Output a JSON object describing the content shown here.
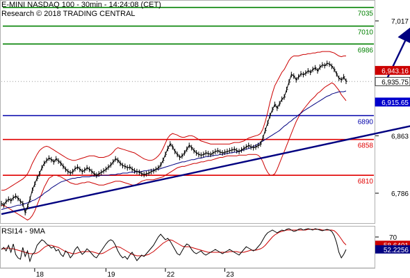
{
  "header": {
    "title": "E-MINI NASDAQ 100 - 30min - 14:24:08 (CET)",
    "subtitle": "Research © 2018 TRADING CENTRAL"
  },
  "colors": {
    "price": "#000000",
    "bollinger": "#cc0000",
    "ma_blue": "#000080",
    "support": "#0000aa",
    "resistance": "#e00000",
    "target": "#008000",
    "trend": "#000080",
    "forecast_arrow": "#000080",
    "tag_current": "#ffffff",
    "tag_upper": "#cc0000",
    "tag_lower": "#0000cc",
    "rsi_line": "#000000",
    "rsi_ma": "#cc0000",
    "rsi_tag_upper": "#cc0000",
    "rsi_tag_lower": "#000080"
  },
  "chart_data": [
    {
      "type": "line",
      "panel": "price",
      "ylim": [
        6745,
        7045
      ],
      "yticks": [
        "7,017",
        "6,863",
        "6,786"
      ],
      "ytick_values": [
        7017,
        6863,
        6786
      ],
      "xticks": [
        "18",
        "19",
        "22",
        "23"
      ],
      "levels": [
        {
          "label": "7035",
          "value": 7035,
          "kind": "target"
        },
        {
          "label": "7010",
          "value": 7010,
          "kind": "target"
        },
        {
          "label": "6986",
          "value": 6986,
          "kind": "target"
        },
        {
          "label": "6890",
          "value": 6890,
          "kind": "support"
        },
        {
          "label": "6858",
          "value": 6858,
          "kind": "resistance"
        },
        {
          "label": "6810",
          "value": 6810,
          "kind": "resistance"
        }
      ],
      "price_tags": [
        {
          "label": "6,943.16",
          "value": 6943.16,
          "kind": "upper"
        },
        {
          "label": "6,935.75",
          "value": 6935.75,
          "kind": "current"
        },
        {
          "label": "6,915.65",
          "value": 6915.65,
          "kind": "lower"
        }
      ],
      "trendline": {
        "from": [
          0,
          6758
        ],
        "to": [
          172,
          6876
        ]
      },
      "forecast_arrow": {
        "from": [
          162,
          6938
        ],
        "to": [
          172,
          7010
        ]
      },
      "series": [
        {
          "kind": "price",
          "values": [
            6772,
            6770,
            6775,
            6778,
            6776,
            6780,
            6782,
            6779,
            6775,
            6772,
            6760,
            6768,
            6778,
            6790,
            6798,
            6806,
            6812,
            6820,
            6826,
            6830,
            6833,
            6831,
            6828,
            6832,
            6829,
            6826,
            6822,
            6818,
            6815,
            6813,
            6815,
            6819,
            6821,
            6818,
            6815,
            6817,
            6820,
            6818,
            6815,
            6812,
            6810,
            6812,
            6814,
            6816,
            6818,
            6821,
            6824,
            6828,
            6832,
            6830,
            6826,
            6823,
            6822,
            6820,
            6821,
            6818,
            6816,
            6815,
            6814,
            6812,
            6811,
            6812,
            6813,
            6815,
            6816,
            6818,
            6820,
            6824,
            6830,
            6838,
            6846,
            6852,
            6848,
            6842,
            6838,
            6834,
            6836,
            6840,
            6845,
            6850,
            6847,
            6843,
            6840,
            6838,
            6837,
            6838,
            6840,
            6839,
            6838,
            6840,
            6842,
            6843,
            6841,
            6840,
            6841,
            6842,
            6843,
            6844,
            6845,
            6843,
            6842,
            6844,
            6846,
            6848,
            6850,
            6848,
            6847,
            6848,
            6850,
            6852,
            6860,
            6870,
            6880,
            6890,
            6898,
            6905,
            6900,
            6906,
            6912,
            6915,
            6925,
            6935,
            6945,
            6943,
            6938,
            6942,
            6946,
            6945,
            6947,
            6950,
            6948,
            6952,
            6954,
            6950,
            6955,
            6958,
            6957,
            6960,
            6959,
            6956,
            6952,
            6946,
            6940,
            6938,
            6942,
            6936
          ]
        },
        {
          "kind": "bollinger_upper",
          "values": [
            6790,
            6790,
            6791,
            6793,
            6795,
            6797,
            6799,
            6801,
            6803,
            6805,
            6808,
            6812,
            6818,
            6826,
            6832,
            6838,
            6843,
            6846,
            6848,
            6849,
            6848,
            6846,
            6844,
            6842,
            6840,
            6838,
            6836,
            6834,
            6832,
            6831,
            6830,
            6830,
            6831,
            6832,
            6833,
            6834,
            6835,
            6836,
            6836,
            6836,
            6835,
            6834,
            6834,
            6834,
            6835,
            6836,
            6838,
            6841,
            6845,
            6847,
            6846,
            6845,
            6844,
            6843,
            6842,
            6841,
            6840,
            6838,
            6836,
            6834,
            6832,
            6831,
            6830,
            6830,
            6831,
            6833,
            6836,
            6840,
            6846,
            6853,
            6860,
            6864,
            6866,
            6865,
            6864,
            6862,
            6861,
            6861,
            6862,
            6863,
            6863,
            6862,
            6860,
            6858,
            6856,
            6855,
            6854,
            6853,
            6852,
            6852,
            6852,
            6852,
            6852,
            6852,
            6852,
            6852,
            6852,
            6853,
            6854,
            6854,
            6854,
            6855,
            6856,
            6858,
            6860,
            6861,
            6862,
            6863,
            6864,
            6866,
            6872,
            6882,
            6894,
            6908,
            6920,
            6930,
            6936,
            6942,
            6948,
            6952,
            6958,
            6964,
            6968,
            6970,
            6970,
            6970,
            6971,
            6972,
            6972,
            6973,
            6973,
            6974,
            6974,
            6975,
            6975,
            6976,
            6976,
            6976,
            6976,
            6975,
            6974,
            6972,
            6970,
            6969,
            6970,
            6970
          ]
        },
        {
          "kind": "bollinger_lower",
          "values": [
            6770,
            6769,
            6768,
            6766,
            6764,
            6762,
            6760,
            6758,
            6756,
            6754,
            6752,
            6750,
            6752,
            6756,
            6762,
            6770,
            6778,
            6786,
            6794,
            6800,
            6806,
            6808,
            6810,
            6810,
            6809,
            6808,
            6806,
            6804,
            6802,
            6800,
            6799,
            6798,
            6798,
            6799,
            6800,
            6800,
            6801,
            6801,
            6800,
            6799,
            6798,
            6797,
            6797,
            6797,
            6798,
            6799,
            6800,
            6801,
            6802,
            6802,
            6802,
            6801,
            6800,
            6799,
            6798,
            6797,
            6797,
            6798,
            6800,
            6802,
            6803,
            6804,
            6804,
            6804,
            6804,
            6805,
            6806,
            6807,
            6808,
            6810,
            6812,
            6814,
            6816,
            6818,
            6820,
            6821,
            6822,
            6822,
            6823,
            6824,
            6825,
            6826,
            6826,
            6827,
            6828,
            6828,
            6829,
            6830,
            6830,
            6831,
            6832,
            6833,
            6834,
            6834,
            6835,
            6836,
            6836,
            6836,
            6836,
            6836,
            6837,
            6837,
            6837,
            6837,
            6838,
            6838,
            6838,
            6838,
            6837,
            6834,
            6828,
            6820,
            6814,
            6810,
            6810,
            6812,
            6818,
            6826,
            6834,
            6842,
            6850,
            6858,
            6866,
            6874,
            6882,
            6888,
            6894,
            6898,
            6902,
            6906,
            6910,
            6913,
            6916,
            6920,
            6922,
            6925,
            6928,
            6930,
            6932,
            6934,
            6932,
            6928,
            6924,
            6918,
            6914,
            6910
          ]
        },
        {
          "kind": "moving_average",
          "values": [
            6764,
            6765,
            6766,
            6767,
            6767,
            6768,
            6769,
            6770,
            6770,
            6771,
            6772,
            6773,
            6774,
            6776,
            6777,
            6779,
            6781,
            6783,
            6786,
            6788,
            6790,
            6793,
            6795,
            6797,
            6799,
            6801,
            6802,
            6803,
            6804,
            6805,
            6806,
            6806,
            6807,
            6807,
            6808,
            6808,
            6808,
            6808,
            6809,
            6809,
            6809,
            6809,
            6810,
            6810,
            6810,
            6810,
            6811,
            6811,
            6811,
            6812,
            6812,
            6813,
            6813,
            6813,
            6814,
            6814,
            6814,
            6815,
            6815,
            6815,
            6816,
            6816,
            6817,
            6817,
            6817,
            6818,
            6818,
            6819,
            6820,
            6821,
            6822,
            6823,
            6824,
            6825,
            6826,
            6827,
            6828,
            6828,
            6829,
            6830,
            6831,
            6831,
            6832,
            6833,
            6833,
            6834,
            6835,
            6835,
            6836,
            6836,
            6837,
            6837,
            6838,
            6838,
            6839,
            6839,
            6840,
            6840,
            6841,
            6841,
            6842,
            6843,
            6844,
            6845,
            6846,
            6847,
            6849,
            6850,
            6852,
            6854,
            6856,
            6858,
            6860,
            6862,
            6864,
            6866,
            6868,
            6870,
            6873,
            6876,
            6878,
            6881,
            6883,
            6886,
            6888,
            6891,
            6893,
            6896,
            6898,
            6900,
            6902,
            6904,
            6906,
            6908,
            6910,
            6912,
            6914,
            6916,
            6917,
            6919,
            6920,
            6921,
            6922,
            6922,
            6922,
            6923
          ]
        }
      ]
    },
    {
      "type": "line",
      "panel": "rsi",
      "title": "RSI14 - 9MA",
      "ylim": [
        25,
        85
      ],
      "yticks": [
        "70"
      ],
      "ytick_values": [
        70
      ],
      "value_tags": [
        {
          "label": "58.6401",
          "value": 58.64,
          "kind": "upper"
        },
        {
          "label": "52.2256",
          "value": 52.23,
          "kind": "lower"
        }
      ],
      "series": [
        {
          "kind": "rsi",
          "values": [
            52,
            55,
            50,
            58,
            48,
            60,
            45,
            40,
            38,
            55,
            42,
            50,
            35,
            45,
            48,
            58,
            62,
            66,
            64,
            60,
            58,
            54,
            56,
            50,
            52,
            45,
            42,
            50,
            47,
            40,
            44,
            52,
            56,
            50,
            45,
            48,
            53,
            50,
            46,
            42,
            40,
            45,
            50,
            55,
            60,
            64,
            66,
            64,
            58,
            50,
            44,
            40,
            42,
            38,
            44,
            48,
            42,
            36,
            40,
            44,
            42,
            46,
            50,
            54,
            58,
            64,
            70,
            74,
            70,
            66,
            68,
            64,
            58,
            52,
            46,
            44,
            50,
            56,
            60,
            58,
            52,
            48,
            46,
            48,
            50,
            46,
            44,
            46,
            48,
            50,
            52,
            50,
            48,
            46,
            48,
            50,
            52,
            50,
            48,
            46,
            44,
            48,
            52,
            56,
            54,
            52,
            50,
            52,
            56,
            60,
            66,
            72,
            76,
            78,
            80,
            78,
            76,
            78,
            80,
            79,
            81,
            82,
            80,
            78,
            79,
            81,
            82,
            80,
            81,
            82,
            81,
            80,
            82,
            81,
            80,
            79,
            80,
            81,
            80,
            78,
            72,
            62,
            48,
            40,
            45,
            52
          ]
        },
        {
          "kind": "rsi_ma",
          "values": [
            53,
            53,
            54,
            54,
            53,
            53,
            52,
            51,
            50,
            49,
            48,
            47,
            46,
            46,
            46,
            47,
            49,
            52,
            55,
            57,
            58,
            58,
            57,
            56,
            55,
            53,
            51,
            49,
            48,
            47,
            46,
            46,
            47,
            48,
            49,
            49,
            49,
            49,
            49,
            48,
            47,
            46,
            46,
            47,
            49,
            51,
            53,
            55,
            56,
            56,
            55,
            53,
            51,
            49,
            47,
            45,
            44,
            43,
            43,
            43,
            43,
            44,
            45,
            47,
            49,
            52,
            55,
            58,
            61,
            63,
            65,
            66,
            65,
            63,
            61,
            59,
            57,
            56,
            56,
            56,
            55,
            54,
            53,
            52,
            51,
            50,
            49,
            48,
            48,
            48,
            48,
            48,
            48,
            48,
            48,
            48,
            49,
            49,
            49,
            49,
            48,
            48,
            48,
            49,
            50,
            51,
            51,
            51,
            52,
            53,
            55,
            58,
            62,
            66,
            70,
            73,
            75,
            77,
            78,
            79,
            80,
            80,
            80,
            80,
            80,
            80,
            80,
            80,
            80,
            81,
            81,
            81,
            81,
            81,
            81,
            80,
            80,
            80,
            80,
            80,
            79,
            76,
            72,
            67,
            62,
            58.6
          ]
        }
      ]
    }
  ]
}
